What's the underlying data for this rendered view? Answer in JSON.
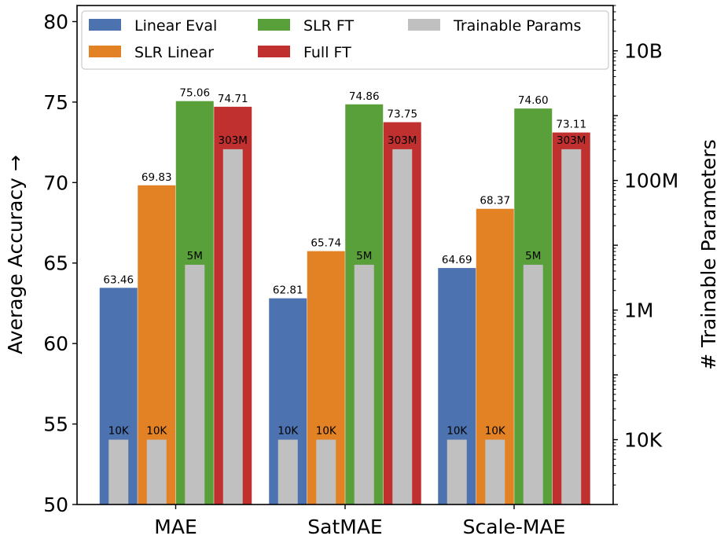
{
  "chart_data": {
    "type": "bar",
    "categories": [
      "MAE",
      "SatMAE",
      "Scale-MAE"
    ],
    "ylabel": "Average Accuracy →",
    "y2label": "# Trainable Parameters",
    "ylim": [
      50,
      81
    ],
    "yticks": [
      "50",
      "55",
      "60",
      "65",
      "70",
      "75",
      "80"
    ],
    "y2_scale": "log",
    "y2lim": [
      1000,
      50000000000
    ],
    "y2ticks": [
      {
        "value": 10000,
        "label": "10K"
      },
      {
        "value": 1000000,
        "label": "1M"
      },
      {
        "value": 100000000,
        "label": "100M"
      },
      {
        "value": 10000000000,
        "label": "10B"
      }
    ],
    "legend_position": "top",
    "series": [
      {
        "name": "Linear Eval",
        "color": "#4c72b0",
        "values": [
          63.46,
          62.81,
          64.69
        ],
        "labels": [
          "63.46",
          "62.81",
          "64.69"
        ],
        "params": [
          10000,
          10000,
          10000
        ],
        "param_labels": [
          "10K",
          "10K",
          "10K"
        ]
      },
      {
        "name": "SLR Linear",
        "color": "#e28224",
        "values": [
          69.83,
          65.74,
          68.37
        ],
        "labels": [
          "69.83",
          "65.74",
          "68.37"
        ],
        "params": [
          10000,
          10000,
          10000
        ],
        "param_labels": [
          "10K",
          "10K",
          "10K"
        ]
      },
      {
        "name": "SLR FT",
        "color": "#5aa03a",
        "values": [
          75.06,
          74.86,
          74.6
        ],
        "labels": [
          "75.06",
          "74.86",
          "74.60"
        ],
        "params": [
          5000000,
          5000000,
          5000000
        ],
        "param_labels": [
          "5M",
          "5M",
          "5M"
        ]
      },
      {
        "name": "Full FT",
        "color": "#c0302f",
        "values": [
          74.71,
          73.75,
          73.11
        ],
        "labels": [
          "74.71",
          "73.75",
          "73.11"
        ],
        "params": [
          303000000,
          303000000,
          303000000
        ],
        "param_labels": [
          "303M",
          "303M",
          "303M"
        ]
      }
    ],
    "params_series": {
      "name": "Trainable Params",
      "color": "#c0c0c0"
    }
  }
}
